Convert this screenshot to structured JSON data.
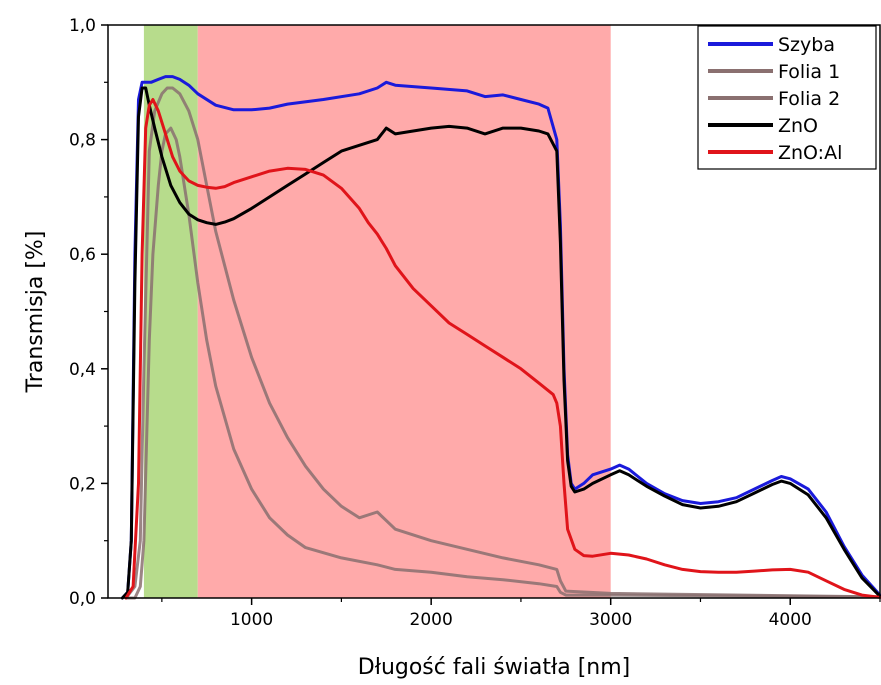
{
  "chart_data": {
    "type": "line",
    "xlabel": "Długość fali światła [nm]",
    "ylabel": "Transmisja [%]",
    "xlim": [
      200,
      4500
    ],
    "ylim": [
      0.0,
      1.0
    ],
    "x_ticks": [
      1000,
      2000,
      3000,
      4000
    ],
    "x_tick_labels": [
      "1000",
      "2000",
      "3000",
      "4000"
    ],
    "y_ticks": [
      0.0,
      0.2,
      0.4,
      0.6,
      0.8,
      1.0
    ],
    "y_tick_labels": [
      "0,0",
      "0,2",
      "0,4",
      "0,6",
      "0,8",
      "1,0"
    ],
    "grid": false,
    "legend_position": "top-right",
    "bands": [
      {
        "x0": 400,
        "x1": 700,
        "color": "#b7dc8c"
      },
      {
        "x0": 700,
        "x1": 3000,
        "color": "#ffaaaa"
      }
    ],
    "series": [
      {
        "name": "Szyba",
        "color": "#1a1adb",
        "x": [
          280,
          310,
          330,
          350,
          370,
          390,
          410,
          440,
          480,
          520,
          560,
          600,
          650,
          700,
          800,
          900,
          1000,
          1100,
          1200,
          1400,
          1600,
          1700,
          1750,
          1800,
          2000,
          2200,
          2300,
          2400,
          2500,
          2600,
          2650,
          2700,
          2720,
          2740,
          2760,
          2780,
          2800,
          2850,
          2900,
          3000,
          3050,
          3100,
          3200,
          3300,
          3400,
          3500,
          3600,
          3700,
          3800,
          3900,
          3950,
          4000,
          4100,
          4200,
          4300,
          4400,
          4500
        ],
        "values": [
          0.0,
          0.01,
          0.1,
          0.6,
          0.87,
          0.9,
          0.9,
          0.9,
          0.905,
          0.91,
          0.91,
          0.905,
          0.895,
          0.88,
          0.86,
          0.852,
          0.852,
          0.855,
          0.862,
          0.87,
          0.88,
          0.89,
          0.9,
          0.895,
          0.89,
          0.885,
          0.875,
          0.878,
          0.87,
          0.862,
          0.855,
          0.8,
          0.65,
          0.4,
          0.25,
          0.2,
          0.19,
          0.2,
          0.215,
          0.225,
          0.232,
          0.225,
          0.2,
          0.182,
          0.17,
          0.165,
          0.168,
          0.175,
          0.19,
          0.205,
          0.212,
          0.208,
          0.19,
          0.15,
          0.09,
          0.04,
          0.005
        ]
      },
      {
        "name": "Folia 1",
        "color": "#8a7070",
        "x": [
          300,
          350,
          380,
          400,
          430,
          450,
          480,
          500,
          520,
          550,
          580,
          600,
          650,
          700,
          750,
          800,
          900,
          1000,
          1100,
          1200,
          1300,
          1500,
          1700,
          1800,
          2000,
          2200,
          2400,
          2600,
          2700,
          2720,
          2750,
          3000,
          4500
        ],
        "values": [
          0.0,
          0.0,
          0.02,
          0.1,
          0.45,
          0.6,
          0.72,
          0.78,
          0.81,
          0.82,
          0.8,
          0.77,
          0.67,
          0.55,
          0.45,
          0.37,
          0.26,
          0.19,
          0.14,
          0.11,
          0.088,
          0.07,
          0.058,
          0.05,
          0.045,
          0.037,
          0.032,
          0.025,
          0.02,
          0.01,
          0.005,
          0.005,
          0.002
        ]
      },
      {
        "name": "Folia 2",
        "color": "#8a7070",
        "x": [
          300,
          350,
          380,
          400,
          430,
          460,
          500,
          530,
          560,
          600,
          650,
          700,
          750,
          800,
          900,
          1000,
          1100,
          1200,
          1300,
          1400,
          1500,
          1600,
          1700,
          1800,
          2000,
          2200,
          2400,
          2600,
          2700,
          2720,
          2750,
          3000,
          4500
        ],
        "values": [
          0.0,
          0.02,
          0.1,
          0.4,
          0.78,
          0.85,
          0.88,
          0.89,
          0.89,
          0.88,
          0.85,
          0.8,
          0.72,
          0.64,
          0.52,
          0.42,
          0.34,
          0.28,
          0.23,
          0.19,
          0.16,
          0.14,
          0.15,
          0.12,
          0.1,
          0.085,
          0.07,
          0.058,
          0.05,
          0.03,
          0.012,
          0.008,
          0.002
        ]
      },
      {
        "name": "ZnO",
        "color": "#000000",
        "x": [
          280,
          310,
          330,
          350,
          370,
          390,
          410,
          430,
          460,
          500,
          550,
          600,
          650,
          700,
          750,
          800,
          850,
          900,
          1000,
          1100,
          1200,
          1300,
          1400,
          1500,
          1600,
          1700,
          1750,
          1800,
          1900,
          2000,
          2100,
          2200,
          2300,
          2400,
          2500,
          2600,
          2650,
          2700,
          2720,
          2740,
          2760,
          2780,
          2800,
          2850,
          2900,
          3000,
          3050,
          3100,
          3200,
          3300,
          3400,
          3500,
          3600,
          3700,
          3800,
          3900,
          3950,
          4000,
          4100,
          4200,
          4300,
          4400,
          4500
        ],
        "values": [
          0.0,
          0.01,
          0.1,
          0.55,
          0.84,
          0.89,
          0.89,
          0.86,
          0.82,
          0.77,
          0.72,
          0.69,
          0.67,
          0.66,
          0.655,
          0.652,
          0.656,
          0.662,
          0.68,
          0.7,
          0.72,
          0.74,
          0.76,
          0.78,
          0.79,
          0.8,
          0.82,
          0.81,
          0.815,
          0.82,
          0.823,
          0.82,
          0.81,
          0.82,
          0.82,
          0.815,
          0.81,
          0.78,
          0.62,
          0.38,
          0.24,
          0.195,
          0.185,
          0.19,
          0.2,
          0.215,
          0.222,
          0.215,
          0.195,
          0.178,
          0.163,
          0.157,
          0.16,
          0.168,
          0.183,
          0.198,
          0.204,
          0.2,
          0.18,
          0.14,
          0.085,
          0.035,
          0.003
        ]
      },
      {
        "name": "ZnO:Al",
        "color": "#e0141a",
        "x": [
          300,
          340,
          370,
          390,
          410,
          430,
          450,
          480,
          520,
          560,
          600,
          650,
          700,
          750,
          800,
          850,
          900,
          1000,
          1100,
          1200,
          1300,
          1400,
          1500,
          1600,
          1650,
          1700,
          1750,
          1800,
          1900,
          2000,
          2100,
          2200,
          2300,
          2400,
          2500,
          2600,
          2680,
          2700,
          2720,
          2740,
          2760,
          2800,
          2850,
          2900,
          3000,
          3100,
          3200,
          3300,
          3400,
          3500,
          3600,
          3700,
          3800,
          3900,
          4000,
          4100,
          4200,
          4300,
          4400,
          4500
        ],
        "values": [
          0.0,
          0.02,
          0.2,
          0.6,
          0.82,
          0.86,
          0.87,
          0.85,
          0.81,
          0.77,
          0.745,
          0.728,
          0.72,
          0.717,
          0.715,
          0.718,
          0.725,
          0.735,
          0.745,
          0.75,
          0.748,
          0.738,
          0.715,
          0.68,
          0.655,
          0.635,
          0.61,
          0.58,
          0.54,
          0.51,
          0.48,
          0.46,
          0.44,
          0.42,
          0.4,
          0.375,
          0.355,
          0.34,
          0.3,
          0.2,
          0.12,
          0.085,
          0.074,
          0.073,
          0.078,
          0.075,
          0.068,
          0.058,
          0.05,
          0.046,
          0.045,
          0.045,
          0.047,
          0.049,
          0.05,
          0.045,
          0.03,
          0.015,
          0.005,
          0.001
        ]
      }
    ]
  }
}
